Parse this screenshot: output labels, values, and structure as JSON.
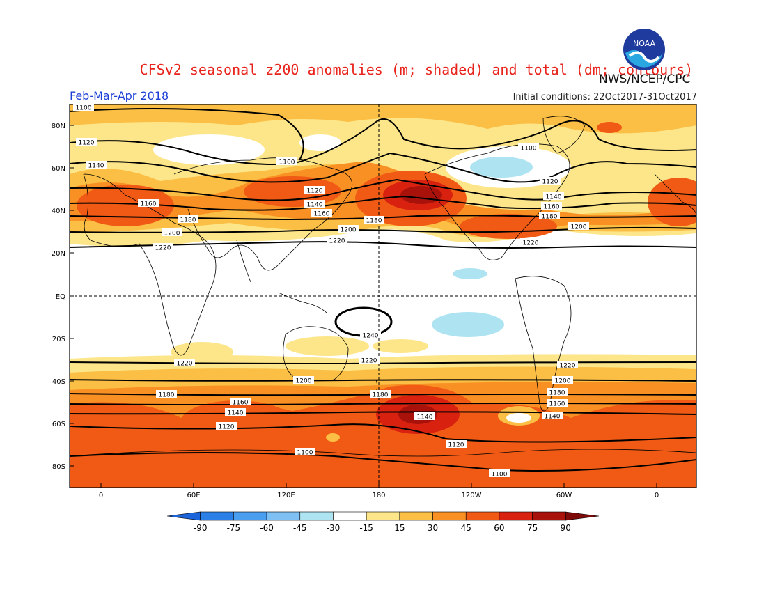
{
  "header": {
    "title": "CFSv2 seasonal z200 anomalies (m; shaded) and total (dm; contours)",
    "org": "NWS/NCEP/CPC",
    "logo_text": "NOAA",
    "season": "Feb-Mar-Apr 2018",
    "initial_conditions": "Initial conditions: 22Oct2017-31Oct2017"
  },
  "map": {
    "lat_labels": [
      "80N",
      "60N",
      "40N",
      "20N",
      "EQ",
      "20S",
      "40S",
      "60S",
      "80S"
    ],
    "lon_labels": [
      "0",
      "60E",
      "120E",
      "180",
      "120W",
      "60W",
      "0"
    ],
    "contour_labels": [
      "1100",
      "1120",
      "1140",
      "1160",
      "1180",
      "1200",
      "1220",
      "1240"
    ],
    "colors": {
      "land_outline": "#000000",
      "contour": "#000000"
    }
  },
  "colorbar": {
    "labels": [
      "-90",
      "-75",
      "-60",
      "-45",
      "-30",
      "-15",
      "15",
      "30",
      "45",
      "60",
      "75",
      "90"
    ],
    "colors": [
      "#1c64d9",
      "#2a80e6",
      "#4a9eef",
      "#7fc0f4",
      "#aee4f2",
      "#ffffff",
      "#fde68a",
      "#fbbf45",
      "#f99023",
      "#f05a15",
      "#d8220f",
      "#a8120b",
      "#7d0909"
    ]
  }
}
